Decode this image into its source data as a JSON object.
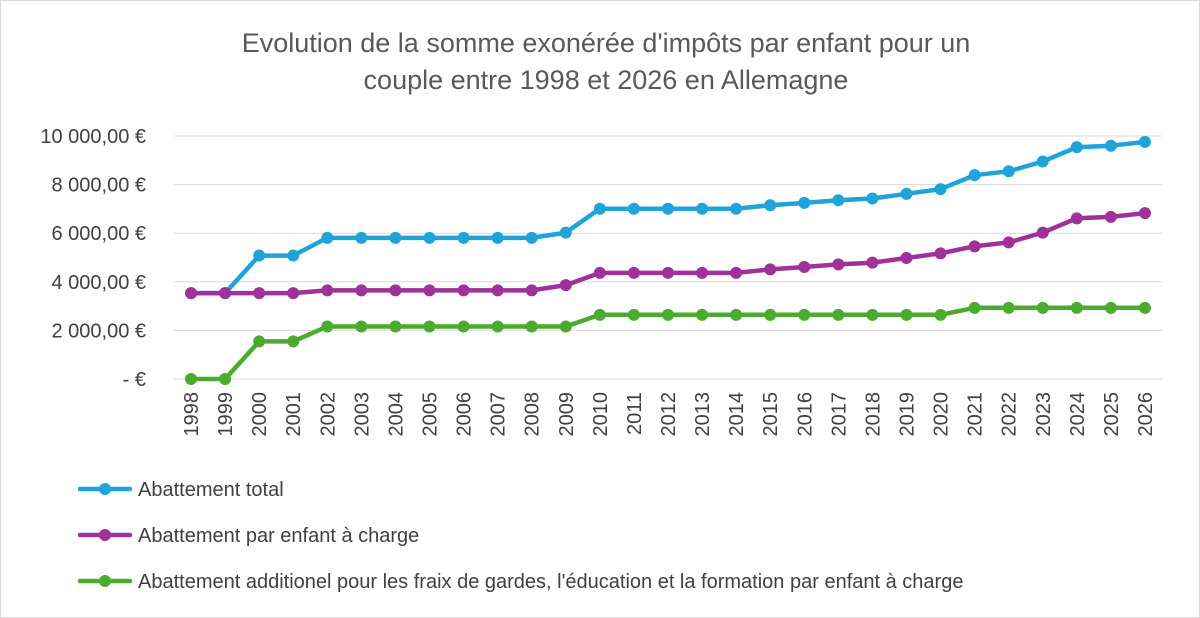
{
  "chart_data": {
    "type": "line",
    "title_lines": [
      "Evolution de la somme exonérée d'impôts par enfant pour un",
      "couple entre 1998 et 2026 en Allemagne"
    ],
    "xlabel": "",
    "ylabel": "",
    "ylim": [
      0,
      10000
    ],
    "y_ticks": [
      0,
      2000,
      4000,
      6000,
      8000,
      10000
    ],
    "y_tick_labels": [
      "-  €",
      "2 000,00 €",
      "4 000,00 €",
      "6 000,00 €",
      "8 000,00 €",
      "10 000,00 €"
    ],
    "grid": true,
    "legend_position": "bottom",
    "categories": [
      "1998",
      "1999",
      "2000",
      "2001",
      "2002",
      "2003",
      "2004",
      "2005",
      "2006",
      "2007",
      "2008",
      "2009",
      "2010",
      "2011",
      "2012",
      "2013",
      "2014",
      "2015",
      "2016",
      "2017",
      "2018",
      "2019",
      "2020",
      "2021",
      "2022",
      "2023",
      "2024",
      "2025",
      "2026"
    ],
    "series": [
      {
        "name": "Abattement total",
        "color": "#1fa3d9",
        "values": [
          3534,
          3534,
          5080,
          5080,
          5808,
          5808,
          5808,
          5808,
          5808,
          5808,
          5808,
          6024,
          7008,
          7008,
          7008,
          7008,
          7008,
          7152,
          7248,
          7356,
          7428,
          7620,
          7812,
          8388,
          8548,
          8952,
          9540,
          9600,
          9756
        ]
      },
      {
        "name": "Abattement par enfant à charge",
        "color": "#a0309a",
        "values": [
          3534,
          3534,
          3534,
          3534,
          3648,
          3648,
          3648,
          3648,
          3648,
          3648,
          3648,
          3864,
          4368,
          4368,
          4368,
          4368,
          4368,
          4512,
          4608,
          4716,
          4788,
          4980,
          5172,
          5460,
          5620,
          6024,
          6612,
          6672,
          6828
        ]
      },
      {
        "name": "Abattement additionel pour les fraix de gardes, l'éducation et la formation par enfant à charge",
        "color": "#4aab2f",
        "values": [
          0,
          0,
          1546,
          1546,
          2160,
          2160,
          2160,
          2160,
          2160,
          2160,
          2160,
          2160,
          2640,
          2640,
          2640,
          2640,
          2640,
          2640,
          2640,
          2640,
          2640,
          2640,
          2640,
          2928,
          2928,
          2928,
          2928,
          2928,
          2928
        ]
      }
    ]
  }
}
